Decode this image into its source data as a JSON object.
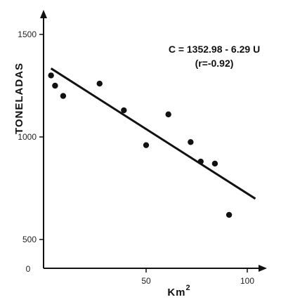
{
  "chart_data": {
    "type": "scatter",
    "ylabel": "TONELADAS",
    "xlabel_base": "Km",
    "xlabel_sup": "2",
    "origin_label": "0",
    "x_ticks": [
      50,
      100
    ],
    "y_ticks": [
      500,
      1000,
      1500
    ],
    "xlim": [
      0,
      110
    ],
    "ylim": [
      350,
      1600
    ],
    "annotation": {
      "equation": "C = 1352.98 - 6.29 U",
      "correlation": "(r=-0.92)"
    },
    "regression": {
      "intercept": 1352.98,
      "slope": -6.29,
      "x_range": [
        3,
        104
      ]
    },
    "points": [
      {
        "x": 3,
        "y": 1300
      },
      {
        "x": 5,
        "y": 1250
      },
      {
        "x": 9,
        "y": 1200
      },
      {
        "x": 27,
        "y": 1260
      },
      {
        "x": 39,
        "y": 1130
      },
      {
        "x": 50,
        "y": 960
      },
      {
        "x": 61,
        "y": 1110
      },
      {
        "x": 72,
        "y": 975
      },
      {
        "x": 77,
        "y": 880
      },
      {
        "x": 84,
        "y": 870
      },
      {
        "x": 91,
        "y": 620
      }
    ],
    "grid": false,
    "legend": "none"
  }
}
